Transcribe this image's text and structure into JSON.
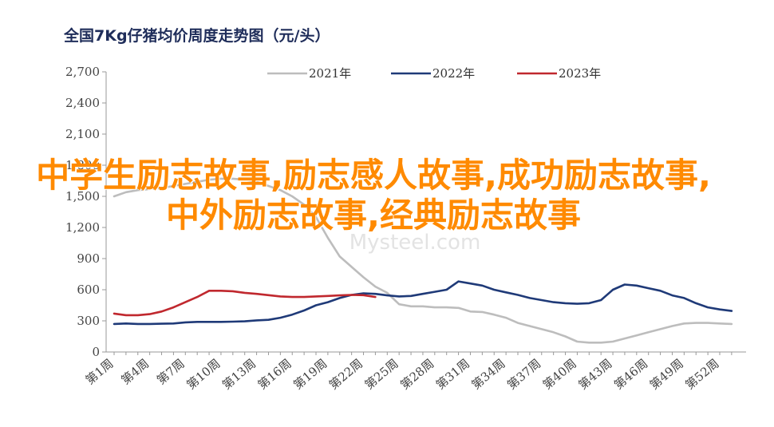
{
  "chart_data": {
    "type": "line",
    "title": "全国7Kg仔猪均价周度走势图（元/头）",
    "xlabel": "",
    "ylabel": "",
    "ylim": [
      0,
      2700
    ],
    "yticks": [
      0,
      300,
      600,
      900,
      1200,
      1500,
      1800,
      2100,
      2400,
      2700
    ],
    "ytick_labels": [
      "0",
      "300",
      "600",
      "900",
      "1,200",
      "1,500",
      "1,800",
      "2,100",
      "2,400",
      "2,700"
    ],
    "x_tick_labels": [
      "第1周",
      "第4周",
      "第7周",
      "第10周",
      "第13周",
      "第16周",
      "第19周",
      "第22周",
      "第25周",
      "第28周",
      "第31周",
      "第34周",
      "第37周",
      "第40周",
      "第43周",
      "第46周",
      "第49周",
      "第52周"
    ],
    "grid": false,
    "legend_position": "top",
    "series": [
      {
        "name": "2021年",
        "color": "#bdbdbd",
        "points": [
          [
            1,
            1500
          ],
          [
            2,
            1540
          ],
          [
            3,
            1560
          ],
          [
            4,
            1570
          ],
          [
            5,
            1580
          ],
          [
            6,
            1600
          ],
          [
            7,
            1620
          ],
          [
            8,
            1640
          ],
          [
            9,
            1660
          ],
          [
            10,
            1670
          ],
          [
            11,
            1670
          ],
          [
            12,
            1660
          ],
          [
            13,
            1640
          ],
          [
            14,
            1600
          ],
          [
            15,
            1560
          ],
          [
            16,
            1500
          ],
          [
            17,
            1420
          ],
          [
            18,
            1300
          ],
          [
            19,
            1100
          ],
          [
            20,
            920
          ],
          [
            21,
            820
          ],
          [
            22,
            720
          ],
          [
            23,
            630
          ],
          [
            24,
            570
          ],
          [
            25,
            460
          ],
          [
            26,
            440
          ],
          [
            27,
            440
          ],
          [
            28,
            430
          ],
          [
            29,
            430
          ],
          [
            30,
            425
          ],
          [
            31,
            390
          ],
          [
            32,
            385
          ],
          [
            33,
            360
          ],
          [
            34,
            330
          ],
          [
            35,
            280
          ],
          [
            36,
            250
          ],
          [
            37,
            220
          ],
          [
            38,
            190
          ],
          [
            39,
            150
          ],
          [
            40,
            100
          ],
          [
            41,
            90
          ],
          [
            42,
            90
          ],
          [
            43,
            100
          ],
          [
            44,
            130
          ],
          [
            45,
            160
          ],
          [
            46,
            190
          ],
          [
            47,
            220
          ],
          [
            48,
            250
          ],
          [
            49,
            275
          ],
          [
            50,
            280
          ],
          [
            51,
            280
          ],
          [
            52,
            275
          ],
          [
            53,
            270
          ]
        ]
      },
      {
        "name": "2022年",
        "color": "#1f3a78",
        "points": [
          [
            1,
            270
          ],
          [
            2,
            275
          ],
          [
            3,
            270
          ],
          [
            4,
            270
          ],
          [
            5,
            272
          ],
          [
            6,
            275
          ],
          [
            7,
            285
          ],
          [
            8,
            290
          ],
          [
            9,
            290
          ],
          [
            10,
            290
          ],
          [
            11,
            292
          ],
          [
            12,
            295
          ],
          [
            13,
            305
          ],
          [
            14,
            310
          ],
          [
            15,
            330
          ],
          [
            16,
            360
          ],
          [
            17,
            400
          ],
          [
            18,
            450
          ],
          [
            19,
            480
          ],
          [
            20,
            520
          ],
          [
            21,
            550
          ],
          [
            22,
            565
          ],
          [
            23,
            560
          ],
          [
            24,
            545
          ],
          [
            25,
            535
          ],
          [
            26,
            540
          ],
          [
            27,
            560
          ],
          [
            28,
            580
          ],
          [
            29,
            600
          ],
          [
            30,
            680
          ],
          [
            31,
            660
          ],
          [
            32,
            640
          ],
          [
            33,
            600
          ],
          [
            34,
            575
          ],
          [
            35,
            550
          ],
          [
            36,
            520
          ],
          [
            37,
            500
          ],
          [
            38,
            480
          ],
          [
            39,
            470
          ],
          [
            40,
            465
          ],
          [
            41,
            470
          ],
          [
            42,
            500
          ],
          [
            43,
            600
          ],
          [
            44,
            650
          ],
          [
            45,
            640
          ],
          [
            46,
            615
          ],
          [
            47,
            590
          ],
          [
            48,
            545
          ],
          [
            49,
            520
          ],
          [
            50,
            470
          ],
          [
            51,
            430
          ],
          [
            52,
            410
          ],
          [
            53,
            395
          ]
        ]
      },
      {
        "name": "2023年",
        "color": "#c0282e",
        "points": [
          [
            1,
            370
          ],
          [
            2,
            355
          ],
          [
            3,
            355
          ],
          [
            4,
            365
          ],
          [
            5,
            390
          ],
          [
            6,
            430
          ],
          [
            7,
            480
          ],
          [
            8,
            530
          ],
          [
            9,
            590
          ],
          [
            10,
            590
          ],
          [
            11,
            585
          ],
          [
            12,
            570
          ],
          [
            13,
            560
          ],
          [
            14,
            548
          ],
          [
            15,
            535
          ],
          [
            16,
            530
          ],
          [
            17,
            530
          ],
          [
            18,
            535
          ],
          [
            19,
            540
          ],
          [
            20,
            545
          ],
          [
            21,
            550
          ],
          [
            22,
            548
          ],
          [
            23,
            530
          ]
        ]
      }
    ]
  },
  "watermark": "Mysteel.com",
  "overlay_text": "中学生励志故事,励志感人故事,成功励志故事,中外励志故事,经典励志故事"
}
